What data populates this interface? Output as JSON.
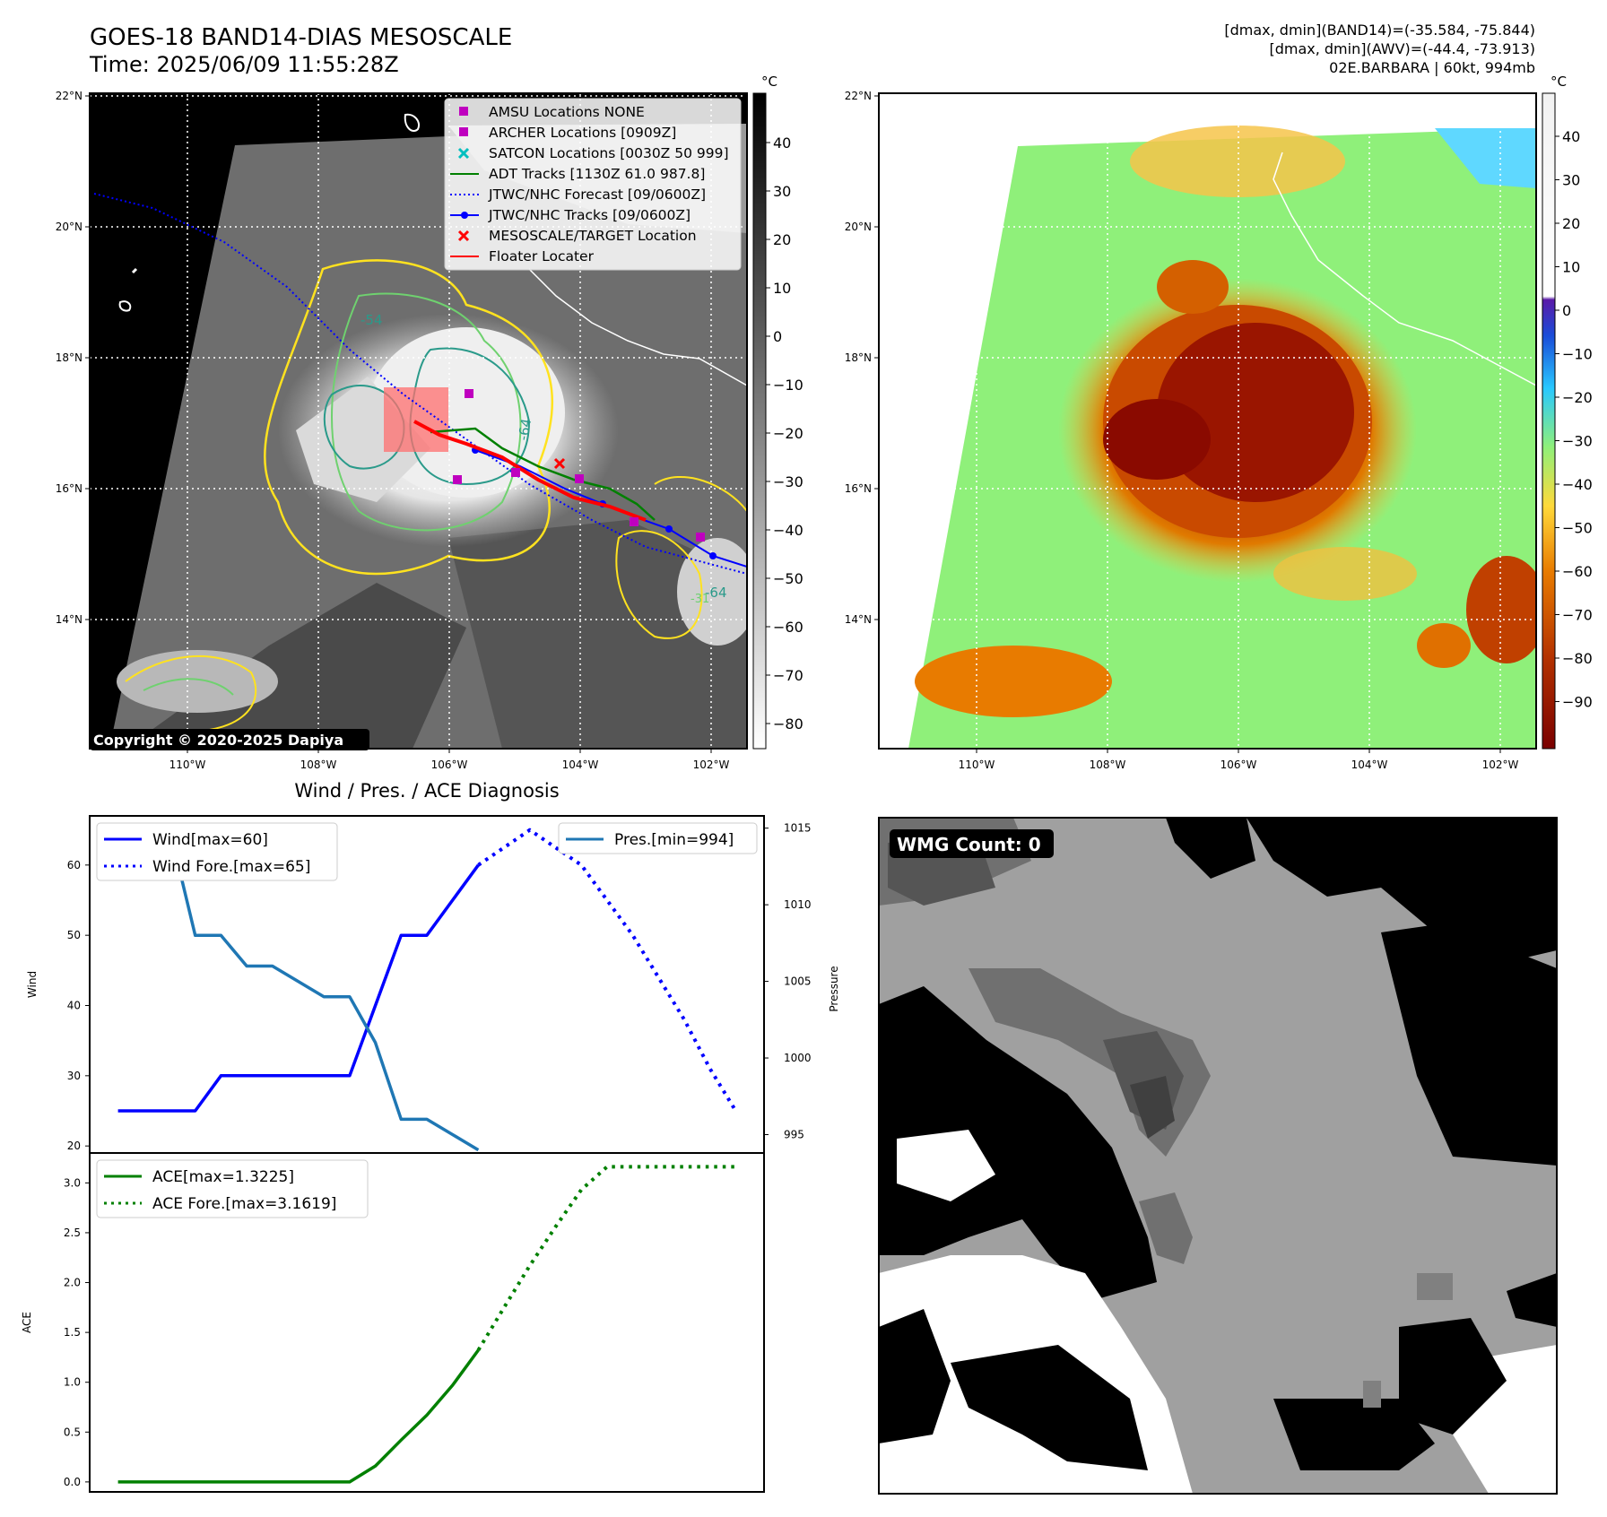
{
  "header": {
    "title": "GOES-18 BAND14-DIAS MESOSCALE",
    "time": "Time: 2025/06/09 11:55:28Z",
    "stats_band14": "[dmax, dmin](BAND14)=(-35.584, -75.844)",
    "stats_awv": "[dmax, dmin](AWV)=(-44.4, -73.913)",
    "storm": "02E.BARBARA | 60kt, 994mb"
  },
  "copyright": "Copyright © 2020-2025 Dapiya",
  "maps": {
    "lon_ticks": [
      "110°W",
      "108°W",
      "106°W",
      "104°W",
      "102°W"
    ],
    "lat_ticks": [
      "22°N",
      "20°N",
      "18°N",
      "16°N",
      "14°N"
    ],
    "ir_colorbar": {
      "unit": "°C",
      "ticks": [
        "40",
        "30",
        "20",
        "10",
        "0",
        "−10",
        "−20",
        "−30",
        "−40",
        "−50",
        "−60",
        "−70",
        "−80"
      ]
    },
    "color_colorbar": {
      "unit": "°C",
      "ticks": [
        "40",
        "30",
        "20",
        "10",
        "0",
        "−10",
        "−20",
        "−30",
        "−40",
        "−50",
        "−60",
        "−70",
        "−80",
        "−90"
      ]
    },
    "contour_labels": [
      "-54",
      "-64",
      "-64",
      "-31"
    ],
    "legend": [
      {
        "label": "AMSU Locations NONE",
        "color": "#bf00bf",
        "kind": "square"
      },
      {
        "label": "ARCHER Locations [0909Z]",
        "color": "#bf00bf",
        "kind": "square"
      },
      {
        "label": "SATCON Locations [0030Z 50 999]",
        "color": "#00bfbf",
        "kind": "x"
      },
      {
        "label": "ADT Tracks [1130Z 61.0 987.8]",
        "color": "#008000",
        "kind": "line"
      },
      {
        "label": "JTWC/NHC Forecast [09/0600Z]",
        "color": "#0000ff",
        "kind": "dotted"
      },
      {
        "label": "JTWC/NHC Tracks [09/0600Z]",
        "color": "#0000ff",
        "kind": "linedot"
      },
      {
        "label": "MESOSCALE/TARGET Location",
        "color": "#ff0000",
        "kind": "x"
      },
      {
        "label": "Floater Locater",
        "color": "#ff0000",
        "kind": "line"
      }
    ]
  },
  "wmg": {
    "label": "WMG Count: 0"
  },
  "chart_data": {
    "type": "line",
    "title": "Wind / Pres. / ACE Diagnosis",
    "wind_panel": {
      "ylabel": "Wind",
      "y2label": "Pressure",
      "ylim": [
        19,
        67
      ],
      "y2lim": [
        993.8,
        1015.8
      ],
      "yticks": [
        "20",
        "30",
        "40",
        "50",
        "60"
      ],
      "y2ticks": [
        "995",
        "1000",
        "1005",
        "1010",
        "1015"
      ],
      "series": [
        {
          "name": "Wind[max=60]",
          "color": "#0000ff",
          "style": "solid",
          "x": [
            0,
            1,
            2,
            3,
            4,
            5,
            6,
            7,
            8,
            9,
            10,
            11,
            12,
            13,
            14
          ],
          "values": [
            25,
            25,
            25,
            25,
            30,
            30,
            30,
            30,
            30,
            30,
            40,
            50,
            50,
            55,
            60
          ]
        },
        {
          "name": "Wind Fore.[max=65]",
          "color": "#0000ff",
          "style": "dotted",
          "x": [
            14,
            15,
            16,
            17,
            18,
            19,
            20,
            21,
            22,
            23,
            24
          ],
          "values": [
            60,
            62.5,
            65,
            62.5,
            60,
            55,
            50,
            44,
            38,
            31,
            25
          ]
        },
        {
          "name": "Pres.[min=994]",
          "color": "#1f77b4",
          "style": "solid",
          "axis": "right",
          "x": [
            0,
            1,
            2,
            3,
            4,
            5,
            6,
            7,
            8,
            9,
            10,
            11,
            12,
            13,
            14
          ],
          "values": [
            1015,
            1015,
            1015,
            1008,
            1008,
            1006,
            1006,
            1005,
            1004,
            1004,
            1001,
            996,
            996,
            995,
            994
          ]
        }
      ]
    },
    "ace_panel": {
      "ylabel": "ACE",
      "ylim": [
        -0.1,
        3.3
      ],
      "yticks": [
        "0.0",
        "0.5",
        "1.0",
        "1.5",
        "2.0",
        "2.5",
        "3.0"
      ],
      "series": [
        {
          "name": "ACE[max=1.3225]",
          "color": "#008000",
          "style": "solid",
          "x": [
            0,
            1,
            2,
            3,
            4,
            5,
            6,
            7,
            8,
            9,
            10,
            11,
            12,
            13,
            14
          ],
          "values": [
            0,
            0,
            0,
            0,
            0,
            0,
            0,
            0,
            0,
            0,
            0.16,
            0.42,
            0.67,
            0.97,
            1.3225
          ]
        },
        {
          "name": "ACE Fore.[max=3.1619]",
          "color": "#008000",
          "style": "dotted",
          "x": [
            14,
            15,
            16,
            17,
            18,
            19,
            20,
            21,
            22,
            23,
            24
          ],
          "values": [
            1.3225,
            1.75,
            2.17,
            2.56,
            2.93,
            3.1619,
            3.1619,
            3.1619,
            3.1619,
            3.1619,
            3.1619
          ]
        }
      ]
    }
  }
}
